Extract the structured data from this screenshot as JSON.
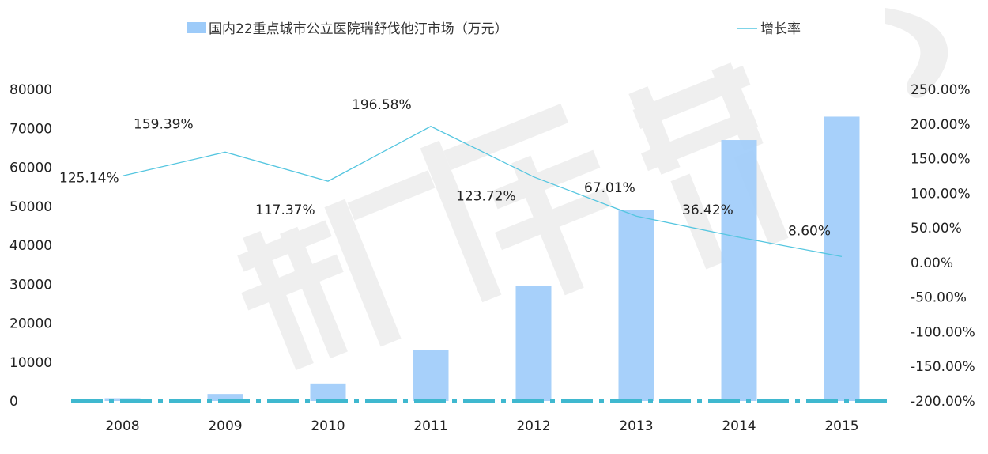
{
  "chart_data": {
    "type": "bar",
    "categories": [
      "2008",
      "2009",
      "2010",
      "2011",
      "2012",
      "2013",
      "2014",
      "2015"
    ],
    "series": [
      {
        "name": "国内22重点城市公立医院瑞舒伐他汀市场（万元）",
        "kind": "bar",
        "axis": "left",
        "color": "#9DCBF9",
        "values": [
          700,
          1800,
          4500,
          13000,
          29500,
          49000,
          67000,
          73000
        ]
      },
      {
        "name": "增长率",
        "kind": "line",
        "axis": "right",
        "color": "#55C6E0",
        "values": [
          125.14,
          159.39,
          117.37,
          196.58,
          123.72,
          67.01,
          36.42,
          8.6
        ],
        "labels": [
          "125.14%",
          "159.39%",
          "117.37%",
          "196.58%",
          "123.72%",
          "67.01%",
          "36.42%",
          "8.60%"
        ]
      }
    ],
    "left_axis": {
      "ylim": [
        0,
        80000
      ],
      "ticks": [
        "0",
        "10000",
        "20000",
        "30000",
        "40000",
        "50000",
        "60000",
        "70000",
        "80000"
      ]
    },
    "right_axis": {
      "ylim": [
        -200,
        250
      ],
      "ticks": [
        "-200.00%",
        "-150.00%",
        "-100.00%",
        "-50.00%",
        "0.00%",
        "50.00%",
        "100.00%",
        "150.00%",
        "200.00%",
        "250.00%"
      ]
    },
    "legend_position": "top",
    "grid": false,
    "watermark": "新康界"
  }
}
